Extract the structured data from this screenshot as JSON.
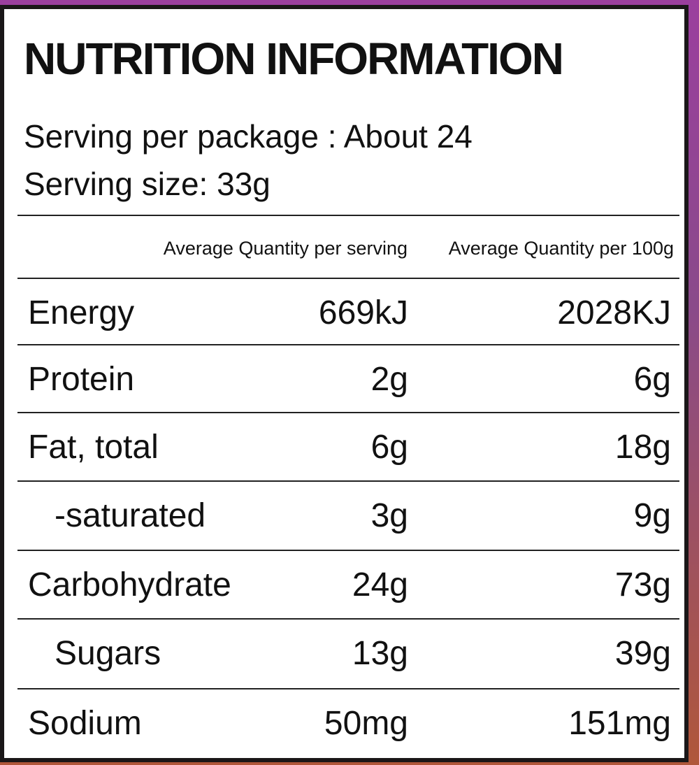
{
  "title": "NUTRITION INFORMATION",
  "serving_per_package": "Serving per package : About 24",
  "serving_size": "Serving size: 33g",
  "columns": [
    "Average Quantity per serving",
    "Average Quantity per 100g"
  ],
  "rows": [
    {
      "label": "Energy",
      "per_serving": "669kJ",
      "per_100g": "2028KJ",
      "indent": false
    },
    {
      "label": "Protein",
      "per_serving": "2g",
      "per_100g": "6g",
      "indent": false
    },
    {
      "label": "Fat, total",
      "per_serving": "6g",
      "per_100g": "18g",
      "indent": false
    },
    {
      "label": "-saturated",
      "per_serving": "3g",
      "per_100g": "9g",
      "indent": true
    },
    {
      "label": "Carbohydrate",
      "per_serving": "24g",
      "per_100g": "73g",
      "indent": false
    },
    {
      "label": "Sugars",
      "per_serving": "13g",
      "per_100g": "39g",
      "indent": true
    },
    {
      "label": "Sodium",
      "per_serving": "50mg",
      "per_100g": "151mg",
      "indent": false
    }
  ],
  "colors": {
    "frame": "#1a1718",
    "top_accent": "#9b3f9e",
    "bottom_accent": "#b0573a"
  }
}
